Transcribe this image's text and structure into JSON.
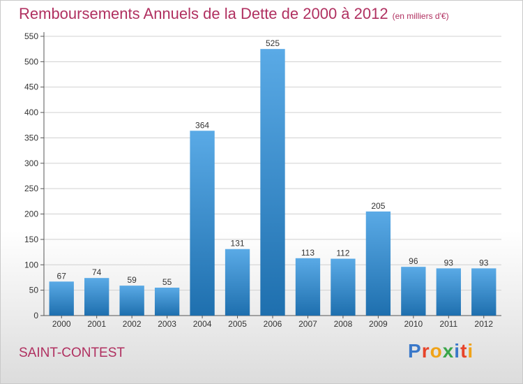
{
  "header": {
    "title": "Remboursements Annuels de la Dette de 2000 à 2012",
    "title_unit": "(en milliers d'€)"
  },
  "footer": {
    "town": "SAINT-CONTEST",
    "logo_letters": [
      "P",
      "r",
      "o",
      "x",
      "i",
      "t",
      "i"
    ],
    "logo_colors": [
      "#3a78c9",
      "#e7442a",
      "#f0a318",
      "#3aa64a",
      "#3a78c9",
      "#e7442a",
      "#f0a318"
    ]
  },
  "colors": {
    "title": "#b03060",
    "bar_light": "#5aaae6",
    "bar_dark": "#1e6fae",
    "grid": "#d0d0d0",
    "axis": "#555555"
  },
  "chart_data": {
    "type": "bar",
    "title": "Remboursements Annuels de la Dette de 2000 à 2012",
    "subtitle": "(en milliers d'€)",
    "xlabel": "",
    "ylabel": "",
    "categories": [
      "2000",
      "2001",
      "2002",
      "2003",
      "2004",
      "2005",
      "2006",
      "2007",
      "2008",
      "2009",
      "2010",
      "2011",
      "2012"
    ],
    "values": [
      67,
      74,
      59,
      55,
      364,
      131,
      525,
      113,
      112,
      205,
      96,
      93,
      93
    ],
    "ylim": [
      0,
      550
    ],
    "yticks": [
      0,
      50,
      100,
      150,
      200,
      250,
      300,
      350,
      400,
      450,
      500,
      550
    ],
    "grid": true,
    "legend": "none"
  }
}
